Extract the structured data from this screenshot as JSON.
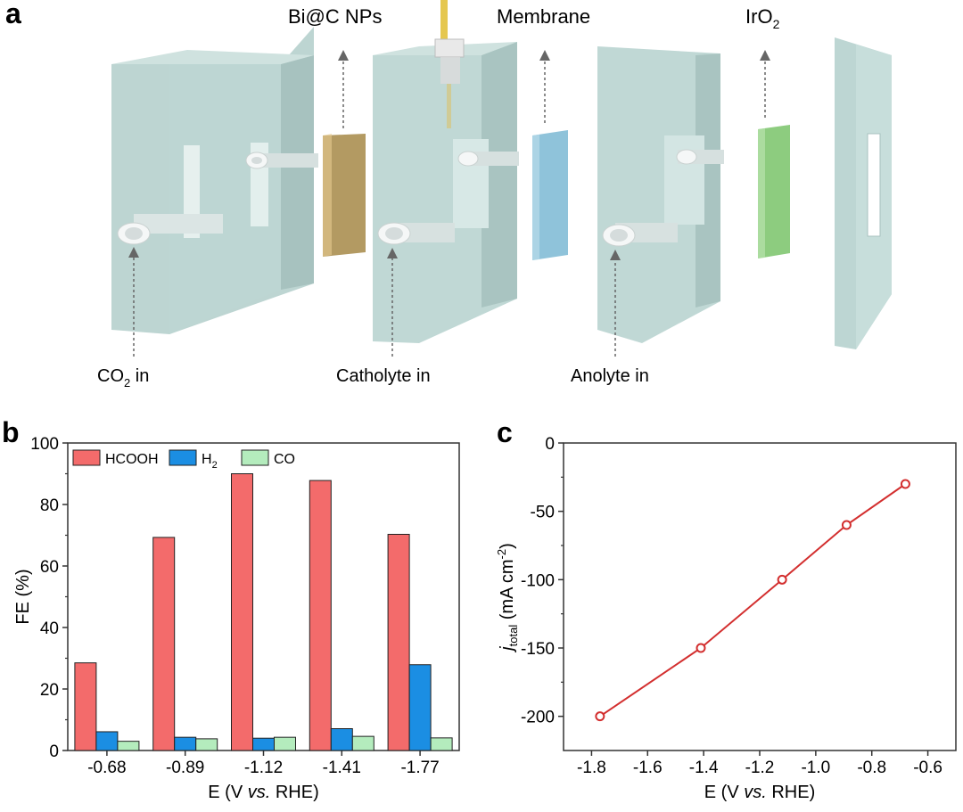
{
  "panel_a": {
    "label": "a",
    "label_bi_c": "Bi@C NPs",
    "label_membrane": "Membrane",
    "label_iro2_main": "IrO",
    "label_iro2_sub": "2",
    "label_co2_main": "CO",
    "label_co2_sub": "2",
    "label_co2_rest": " in",
    "label_catholyte": "Catholyte in",
    "label_anolyte": "Anolyte in"
  },
  "colors": {
    "plate": "#b9d3d0",
    "plate_side": "#a7c2bf",
    "plate_top": "#cfe2df",
    "bi_c": "#b39a62",
    "membrane": "#8fc3da",
    "iro2": "#8dcc7f",
    "hcooh": "#f36b6b",
    "h2": "#1b8ee3",
    "co": "#b4ecbd",
    "line": "#d32f2f"
  },
  "chart_data": [
    {
      "panel": "b",
      "type": "bar",
      "title": "",
      "xlabel_pre": "E (V ",
      "xlabel_italic": "vs.",
      "xlabel_post": " RHE)",
      "ylabel": "FE (%)",
      "ylim": [
        0,
        100
      ],
      "yticks": [
        "0",
        "20",
        "40",
        "60",
        "80",
        "100"
      ],
      "categories": [
        "-0.68",
        "-0.89",
        "-1.12",
        "-1.41",
        "-1.77"
      ],
      "legend_position": "top-left",
      "series": [
        {
          "name": "HCOOH",
          "legend_main": "HCOOH",
          "legend_sub": "",
          "color_key": "hcooh",
          "values": [
            28.5,
            69.3,
            90.0,
            87.8,
            70.3
          ]
        },
        {
          "name": "H2",
          "legend_main": "H",
          "legend_sub": "2",
          "color_key": "h2",
          "values": [
            6.1,
            4.3,
            4.0,
            7.1,
            27.9
          ]
        },
        {
          "name": "CO",
          "legend_main": "CO",
          "legend_sub": "",
          "color_key": "co",
          "values": [
            3.0,
            3.8,
            4.3,
            4.6,
            4.1
          ]
        }
      ]
    },
    {
      "panel": "c",
      "type": "line",
      "title": "",
      "xlabel_pre": "E (V ",
      "xlabel_italic": "vs.",
      "xlabel_post": " RHE)",
      "ylabel_j": "j",
      "ylabel_sub": "total",
      "ylabel_unit": " (mA cm",
      "ylabel_sup": "-2",
      "ylabel_close": ")",
      "xlim": [
        -1.9,
        -0.5
      ],
      "ylim": [
        -225,
        0
      ],
      "xticks": [
        "-1.8",
        "-1.6",
        "-1.4",
        "-1.2",
        "-1.0",
        "-0.8",
        "-0.6"
      ],
      "yticks": [
        "0",
        "-50",
        "-100",
        "-150",
        "-200"
      ],
      "x": [
        -1.77,
        -1.41,
        -1.12,
        -0.89,
        -0.68
      ],
      "y": [
        -200,
        -150,
        -100,
        -60,
        -30
      ]
    }
  ]
}
